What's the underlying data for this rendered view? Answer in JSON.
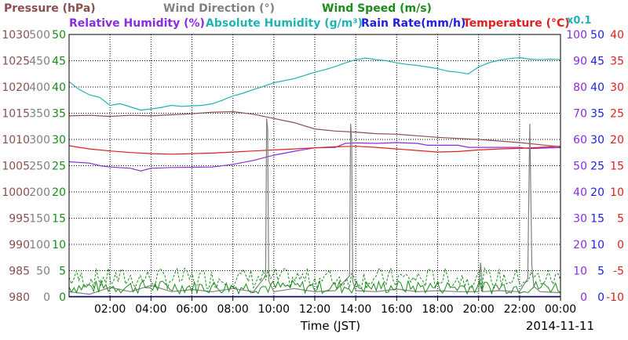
{
  "chart_data": {
    "type": "line",
    "date_label": "2014-11-11",
    "xlabel": "Time (JST)",
    "x_range": [
      0,
      24
    ],
    "x_ticks": [
      "02:00",
      "04:00",
      "06:00",
      "08:00",
      "10:00",
      "12:00",
      "14:00",
      "16:00",
      "18:00",
      "20:00",
      "22:00",
      "00:00"
    ],
    "x_tick_hours": [
      2,
      4,
      6,
      8,
      10,
      12,
      14,
      16,
      18,
      20,
      22,
      24
    ],
    "legend_top": [
      {
        "name": "Pressure (hPa)",
        "color": "#8b4f4f"
      },
      {
        "name": "Wind Direction (°)",
        "color": "#808080"
      },
      {
        "name": "Wind Speed (m/s)",
        "color": "#1a8c1a"
      }
    ],
    "legend_bottom": [
      {
        "name": "Relative Humidity (%)",
        "color": "#8b2be2"
      },
      {
        "name": "Absolute Humidity (g/m³)",
        "color": "#1fb3b3"
      },
      {
        "name": "Rain Rate(mm/h)",
        "color": "#1f1fe0"
      },
      {
        "name": "Temperature (°C)",
        "color": "#e01f1f"
      }
    ],
    "multiplier_label": "x0.1",
    "axes_left": [
      {
        "color": "#8b4f4f",
        "ticks": [
          "1030",
          "1025",
          "1020",
          "1015",
          "1010",
          "1005",
          "1000",
          "995",
          "990",
          "985",
          "980"
        ]
      },
      {
        "color": "#808080",
        "ticks": [
          "500",
          "450",
          "400",
          "350",
          "300",
          "250",
          "200",
          "150",
          "100",
          "50",
          "0"
        ]
      },
      {
        "color": "#1a8c1a",
        "ticks": [
          "50",
          "45",
          "40",
          "35",
          "30",
          "25",
          "20",
          "15",
          "10",
          "5",
          "0"
        ]
      }
    ],
    "axes_right": [
      {
        "color": "#8b2be2",
        "ticks": [
          "100",
          "90",
          "80",
          "70",
          "60",
          "50",
          "40",
          "30",
          "20",
          "10",
          "0"
        ]
      },
      {
        "color": "#1f1fe0",
        "ticks": [
          "50",
          "45",
          "40",
          "35",
          "30",
          "25",
          "20",
          "15",
          "10",
          "5",
          "0"
        ]
      },
      {
        "color": "#e01f1f",
        "ticks": [
          "40",
          "35",
          "30",
          "25",
          "20",
          "15",
          "10",
          "5",
          "0",
          "-5",
          "-10"
        ]
      }
    ],
    "series": [
      {
        "name": "Pressure (hPa)",
        "color": "#8b4f4f",
        "ymin": 980,
        "ymax": 1030,
        "x": [
          0,
          1,
          2,
          3,
          4,
          5,
          6,
          7,
          8,
          9,
          10,
          11,
          12,
          13,
          14,
          15,
          16,
          17,
          18,
          19,
          20,
          21,
          22,
          23,
          24
        ],
        "y": [
          1014.5,
          1014.6,
          1014.4,
          1014.6,
          1014.5,
          1014.7,
          1014.9,
          1015.2,
          1015.3,
          1014.8,
          1014.0,
          1013.2,
          1012.0,
          1011.6,
          1011.4,
          1011.1,
          1011.0,
          1010.7,
          1010.4,
          1010.2,
          1010.0,
          1009.7,
          1009.4,
          1009.0,
          1008.6
        ]
      },
      {
        "name": "Absolute Humidity (g/m³)",
        "color": "#1fb3b3",
        "ymin": 0,
        "ymax": 50,
        "x": [
          0,
          0.5,
          1,
          1.5,
          2,
          2.5,
          3,
          3.5,
          4,
          4.5,
          5,
          5.5,
          6,
          6.5,
          7,
          7.5,
          8,
          8.5,
          9,
          9.5,
          10,
          10.5,
          11,
          11.5,
          12,
          12.5,
          13,
          13.5,
          14,
          14.5,
          15,
          15.5,
          16,
          16.5,
          17,
          17.5,
          18,
          18.5,
          19,
          19.5,
          20,
          20.5,
          21,
          21.5,
          22,
          22.5,
          23,
          23.5,
          24
        ],
        "y": [
          41.0,
          39.5,
          38.5,
          38.0,
          36.5,
          36.8,
          36.2,
          35.6,
          35.8,
          36.1,
          36.5,
          36.3,
          36.4,
          36.5,
          36.8,
          37.5,
          38.3,
          38.8,
          39.5,
          40.1,
          40.8,
          41.2,
          41.6,
          42.2,
          42.8,
          43.3,
          43.9,
          44.6,
          45.2,
          45.5,
          45.2,
          45.0,
          44.6,
          44.3,
          44.1,
          43.8,
          43.5,
          43.0,
          42.8,
          42.5,
          43.8,
          44.6,
          45.1,
          45.4,
          45.6,
          45.3,
          45.2,
          45.3,
          45.2
        ]
      },
      {
        "name": "Relative Humidity (%)",
        "color": "#8b2be2",
        "ymin": 0,
        "ymax": 100,
        "x": [
          0,
          1,
          1.5,
          2,
          3,
          3.5,
          4,
          5,
          6,
          7,
          8,
          9,
          10,
          11,
          12,
          13,
          13.5,
          14,
          15,
          16,
          17,
          17.5,
          18,
          19,
          19.5,
          20,
          21,
          22,
          22.5,
          23,
          24
        ],
        "y": [
          51.5,
          51.0,
          50.0,
          49.5,
          49.0,
          48.0,
          49.0,
          49.3,
          49.4,
          49.5,
          50.5,
          52.0,
          54.0,
          55.5,
          56.8,
          57.0,
          58.5,
          58.7,
          58.5,
          58.8,
          58.5,
          57.8,
          57.8,
          57.8,
          57.0,
          57.0,
          57.0,
          57.0,
          56.5,
          56.7,
          56.9
        ]
      },
      {
        "name": "Temperature (°C)",
        "color": "#e01f1f",
        "ymin": -10,
        "ymax": 40,
        "x": [
          0,
          0.5,
          1,
          2,
          3,
          4,
          5,
          6,
          7,
          8,
          9,
          10,
          11,
          12,
          13,
          14,
          15,
          16,
          17,
          18,
          19,
          20,
          21,
          22,
          23,
          24
        ],
        "y": [
          18.8,
          18.5,
          18.2,
          17.8,
          17.5,
          17.3,
          17.2,
          17.3,
          17.4,
          17.6,
          17.8,
          18.0,
          18.2,
          18.4,
          18.6,
          18.7,
          18.5,
          18.2,
          17.9,
          17.6,
          17.7,
          18.0,
          18.2,
          18.3,
          18.5,
          18.7
        ]
      },
      {
        "name": "Wind Direction (°)",
        "color": "#808080",
        "ymin": 0,
        "ymax": 500,
        "x": [
          0,
          1,
          2,
          3,
          4,
          5,
          6,
          7,
          8,
          9,
          9.6,
          9.65,
          9.7,
          9.75,
          10,
          11,
          12,
          13,
          13.7,
          13.75,
          13.8,
          13.85,
          14,
          15,
          16,
          17,
          18,
          19,
          20,
          20.1,
          20.2,
          21,
          22,
          22.4,
          22.5,
          22.6,
          22.7,
          23,
          24
        ],
        "y": [
          10,
          5,
          18,
          10,
          22,
          10,
          14,
          10,
          16,
          10,
          40,
          340,
          320,
          30,
          10,
          16,
          10,
          12,
          40,
          330,
          300,
          30,
          12,
          10,
          15,
          10,
          12,
          10,
          10,
          65,
          10,
          12,
          10,
          35,
          330,
          60,
          20,
          10,
          8
        ]
      },
      {
        "name": "Rain Rate(mm/h)",
        "color": "#1f1fe0",
        "ymin": 0,
        "ymax": 50,
        "x": [
          0,
          24
        ],
        "y": [
          0.1,
          0.1
        ]
      }
    ]
  }
}
